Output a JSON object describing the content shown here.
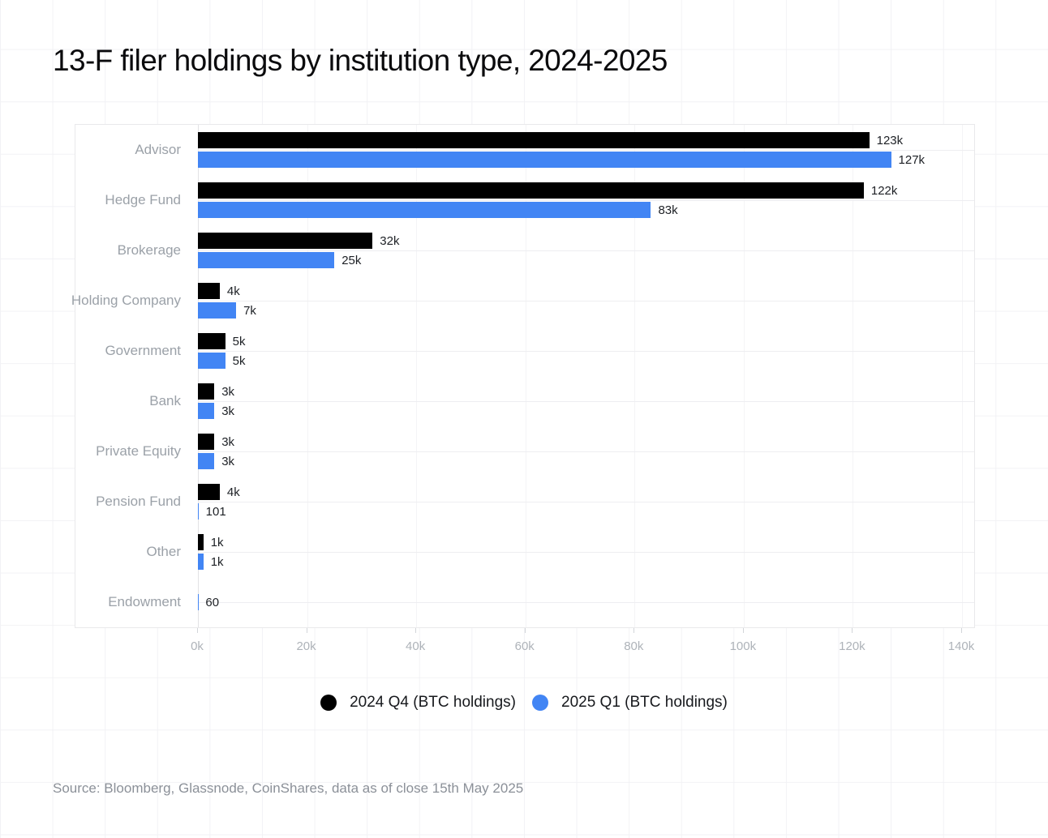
{
  "title": "13-F filer holdings by institution type, 2024-2025",
  "source_note": "Source: Bloomberg, Glassnode, CoinShares, data as of close 15th May 2025",
  "legend": {
    "items": [
      {
        "label": "2024 Q4 (BTC holdings)",
        "color": "#000000"
      },
      {
        "label": "2025 Q1 (BTC holdings)",
        "color": "#4285f4"
      }
    ]
  },
  "x_axis": {
    "tick_labels": [
      "0k",
      "20k",
      "40k",
      "60k",
      "80k",
      "100k",
      "120k",
      "140k"
    ],
    "min": 0,
    "max": 140000
  },
  "chart_data": {
    "type": "bar",
    "orientation": "horizontal",
    "title": "13-F filer holdings by institution type, 2024-2025",
    "xlim": [
      0,
      140000
    ],
    "x_tick_labels": [
      "0k",
      "20k",
      "40k",
      "60k",
      "80k",
      "100k",
      "120k",
      "140k"
    ],
    "grid": "row-center lines and vertical tick lines, faint",
    "legend_position": "bottom",
    "categories": [
      "Advisor",
      "Hedge Fund",
      "Brokerage",
      "Holding Company",
      "Government",
      "Bank",
      "Private Equity",
      "Pension Fund",
      "Other",
      "Endowment"
    ],
    "series": [
      {
        "name": "2024 Q4 (BTC holdings)",
        "color": "#000000",
        "values": [
          123000,
          122000,
          32000,
          4000,
          5000,
          3000,
          3000,
          4000,
          1000,
          null
        ],
        "labels": [
          "123k",
          "122k",
          "32k",
          "4k",
          "5k",
          "3k",
          "3k",
          "4k",
          "1k",
          null
        ]
      },
      {
        "name": "2025 Q1 (BTC holdings)",
        "color": "#4285f4",
        "values": [
          127000,
          83000,
          25000,
          7000,
          5000,
          3000,
          3000,
          101,
          1000,
          60
        ],
        "labels": [
          "127k",
          "83k",
          "25k",
          "7k",
          "5k",
          "3k",
          "3k",
          "101",
          "1k",
          "60"
        ]
      }
    ]
  }
}
